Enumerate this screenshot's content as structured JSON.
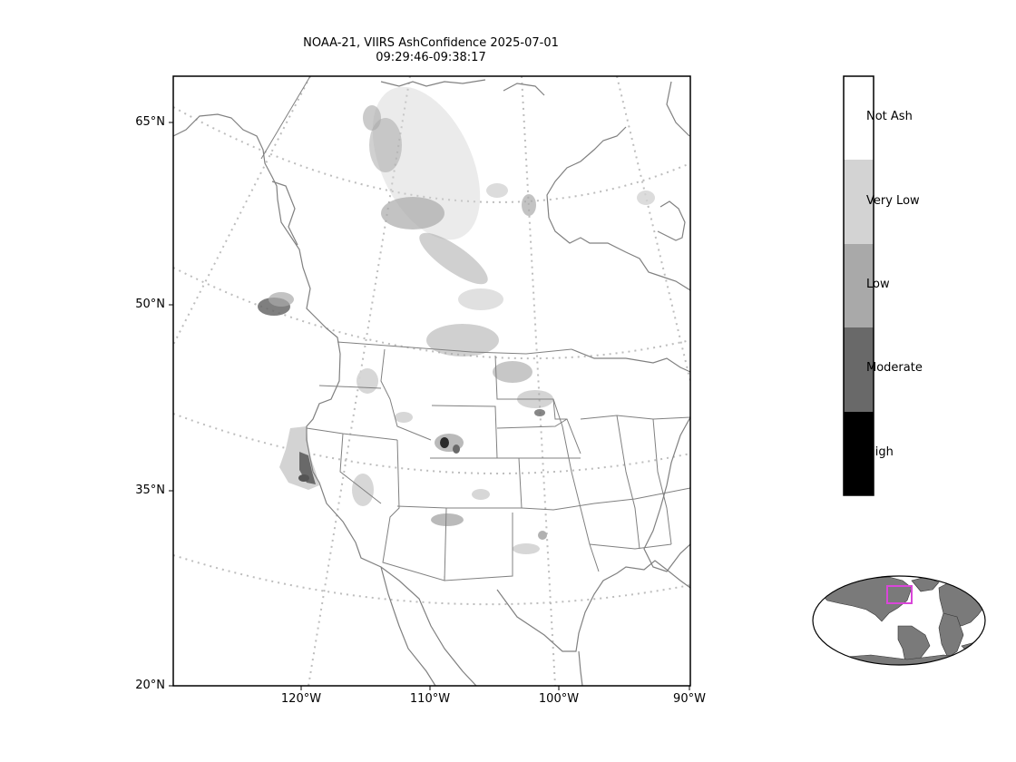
{
  "title": {
    "line1": "NOAA-21, VIIRS AshConfidence 2025-07-01",
    "line2": "09:29:46-09:38:17"
  },
  "map": {
    "lat_labels": [
      "65°N",
      "50°N",
      "35°N",
      "20°N"
    ],
    "lon_labels": [
      "120°W",
      "110°W",
      "100°W",
      "90°W"
    ],
    "coastline_color": "#808080",
    "border_color": "#808080",
    "graticule_color": "#bdbdbd"
  },
  "colorbar": {
    "classes": [
      {
        "label": "Not Ash",
        "color": "#ffffff"
      },
      {
        "label": "Very Low",
        "color": "#d3d3d3"
      },
      {
        "label": "Low",
        "color": "#a9a9a9"
      },
      {
        "label": "Moderate",
        "color": "#696969"
      },
      {
        "label": "High",
        "color": "#000000"
      }
    ]
  },
  "inset": {
    "land_color": "#7a7a7a",
    "extent_box_color": "#d946d9"
  }
}
